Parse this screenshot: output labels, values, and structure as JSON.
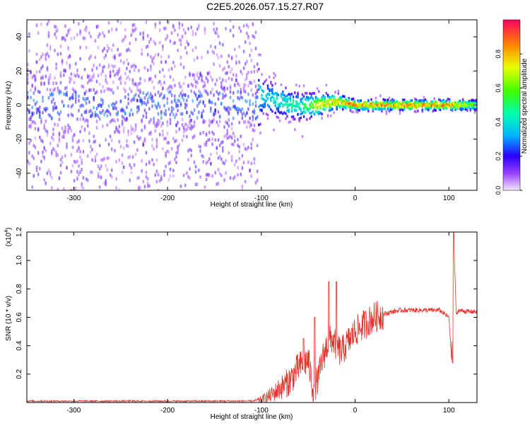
{
  "title": "C2E5.2026.057.15.27.R07",
  "colors": {
    "snr_line": "#e8302a",
    "axis": "#000000",
    "spectrum_band": "#6a00ff"
  },
  "chart_data": [
    {
      "type": "heatmap",
      "name": "spectrogram",
      "xlabel": "Height of straight line (km)",
      "ylabel": "Frequency (Hz)",
      "xlim": [
        -350,
        130
      ],
      "ylim": [
        -50,
        50
      ],
      "xticks": [
        -300,
        -200,
        -100,
        0,
        100
      ],
      "yticks": [
        -40,
        -20,
        0,
        20,
        40
      ],
      "colorbar": {
        "label": "Normalized spectral amplitude",
        "range": [
          0,
          1
        ],
        "ticks": [
          "0.0",
          "0.2",
          "0.4",
          "0.6",
          "0.8"
        ],
        "tick_values": [
          0.0,
          0.2,
          0.4,
          0.6,
          0.8
        ]
      },
      "description_points": [
        {
          "x": -350,
          "center_hz": 0,
          "spread_hz": 50,
          "peak_amp": 0.25
        },
        {
          "x": -110,
          "center_hz": 0,
          "spread_hz": 40,
          "peak_amp": 0.3
        },
        {
          "x": -100,
          "center_hz": 5,
          "spread_hz": 8,
          "peak_amp": 0.45
        },
        {
          "x": -60,
          "center_hz": -1,
          "spread_hz": 6,
          "peak_amp": 0.55
        },
        {
          "x": -40,
          "center_hz": 0,
          "spread_hz": 5,
          "peak_amp": 0.8
        },
        {
          "x": -20,
          "center_hz": 2,
          "spread_hz": 3,
          "peak_amp": 0.9
        },
        {
          "x": 0,
          "center_hz": 0,
          "spread_hz": 2,
          "peak_amp": 0.95
        },
        {
          "x": 100,
          "center_hz": 0,
          "spread_hz": 2,
          "peak_amp": 0.95
        },
        {
          "x": 130,
          "center_hz": 0,
          "spread_hz": 2,
          "peak_amp": 0.6
        }
      ]
    },
    {
      "type": "line",
      "name": "snr",
      "xlabel": "Height of straight line (km)",
      "ylabel": "SNR (10 * v/v)",
      "yscale_label": "(x10",
      "yscale_exponent": "4",
      "yscale_close": ")",
      "xlim": [
        -350,
        130
      ],
      "ylim": [
        0,
        1.2
      ],
      "xticks": [
        -300,
        -200,
        -100,
        0,
        100
      ],
      "yticks": [
        "0.2",
        "0.4",
        "0.6",
        "0.8",
        "1.0",
        "1.2"
      ],
      "ytick_values": [
        0.2,
        0.4,
        0.6,
        0.8,
        1.0,
        1.2
      ],
      "series": [
        {
          "name": "SNR",
          "x": [
            -350,
            -300,
            -250,
            -200,
            -150,
            -110,
            -100,
            -90,
            -80,
            -70,
            -60,
            -50,
            -45,
            -40,
            -35,
            -30,
            -25,
            -20,
            -15,
            -10,
            -5,
            0,
            10,
            20,
            30,
            40,
            50,
            60,
            70,
            80,
            90,
            100,
            103,
            105,
            108,
            110,
            120,
            130
          ],
          "y": [
            0.01,
            0.01,
            0.01,
            0.01,
            0.01,
            0.01,
            0.02,
            0.05,
            0.1,
            0.15,
            0.25,
            0.3,
            0.1,
            0.15,
            0.3,
            0.4,
            0.45,
            0.4,
            0.35,
            0.4,
            0.45,
            0.5,
            0.55,
            0.6,
            0.62,
            0.64,
            0.65,
            0.65,
            0.65,
            0.65,
            0.65,
            0.6,
            0.3,
            1.2,
            0.6,
            0.65,
            0.64,
            0.64
          ]
        }
      ],
      "spikes": [
        {
          "x": -55,
          "y": 0.45
        },
        {
          "x": -43,
          "y": 0.6
        },
        {
          "x": -28,
          "y": 0.85
        },
        {
          "x": -20,
          "y": 0.85
        },
        {
          "x": 104,
          "y": 0.28
        },
        {
          "x": 105,
          "y": 1.2
        }
      ]
    }
  ]
}
